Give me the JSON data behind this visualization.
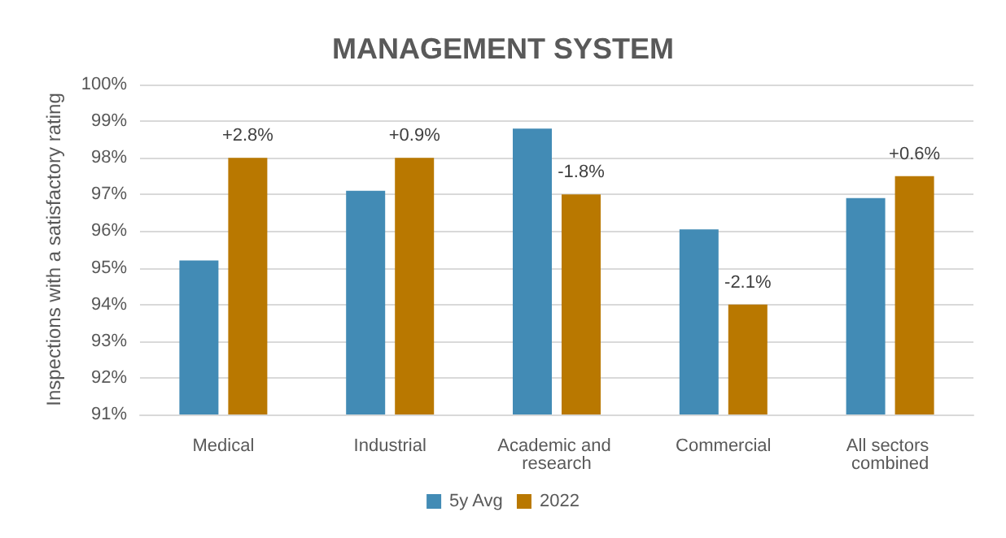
{
  "chart_data": {
    "type": "bar",
    "title": "MANAGEMENT SYSTEM",
    "ylabel": "Inspections with a satisfactory rating",
    "categories": [
      "Medical",
      "Industrial",
      "Academic and research",
      "Commercial",
      "All sectors combined"
    ],
    "series": [
      {
        "name": "5y Avg",
        "color": "#428bb5",
        "values": [
          95.2,
          97.1,
          98.8,
          96.05,
          96.9
        ]
      },
      {
        "name": "2022",
        "color": "#b97800",
        "values": [
          98.0,
          98.0,
          97.0,
          94.0,
          97.5
        ]
      }
    ],
    "annotations": [
      {
        "text": "+2.8%",
        "x": "Medical",
        "y": 98.0
      },
      {
        "text": "+0.9%",
        "x": "Industrial",
        "y": 98.0
      },
      {
        "text": "-1.8%",
        "x": "Academic and research",
        "y": 97.0
      },
      {
        "text": "-2.1%",
        "x": "Commercial",
        "y": 94.0
      },
      {
        "text": "+0.6%",
        "x": "All sectors combined",
        "y": 97.5
      }
    ],
    "ylim": [
      91,
      100
    ],
    "yticks": [
      {
        "value": 91,
        "label": "91%"
      },
      {
        "value": 92,
        "label": "92%"
      },
      {
        "value": 93,
        "label": "93%"
      },
      {
        "value": 94,
        "label": "94%"
      },
      {
        "value": 95,
        "label": "95%"
      },
      {
        "value": 96,
        "label": "96%"
      },
      {
        "value": 97,
        "label": "97%"
      },
      {
        "value": 98,
        "label": "98%"
      },
      {
        "value": 99,
        "label": "99%"
      },
      {
        "value": 100,
        "label": "100%"
      }
    ],
    "grid": "y",
    "legend": "bottom"
  }
}
